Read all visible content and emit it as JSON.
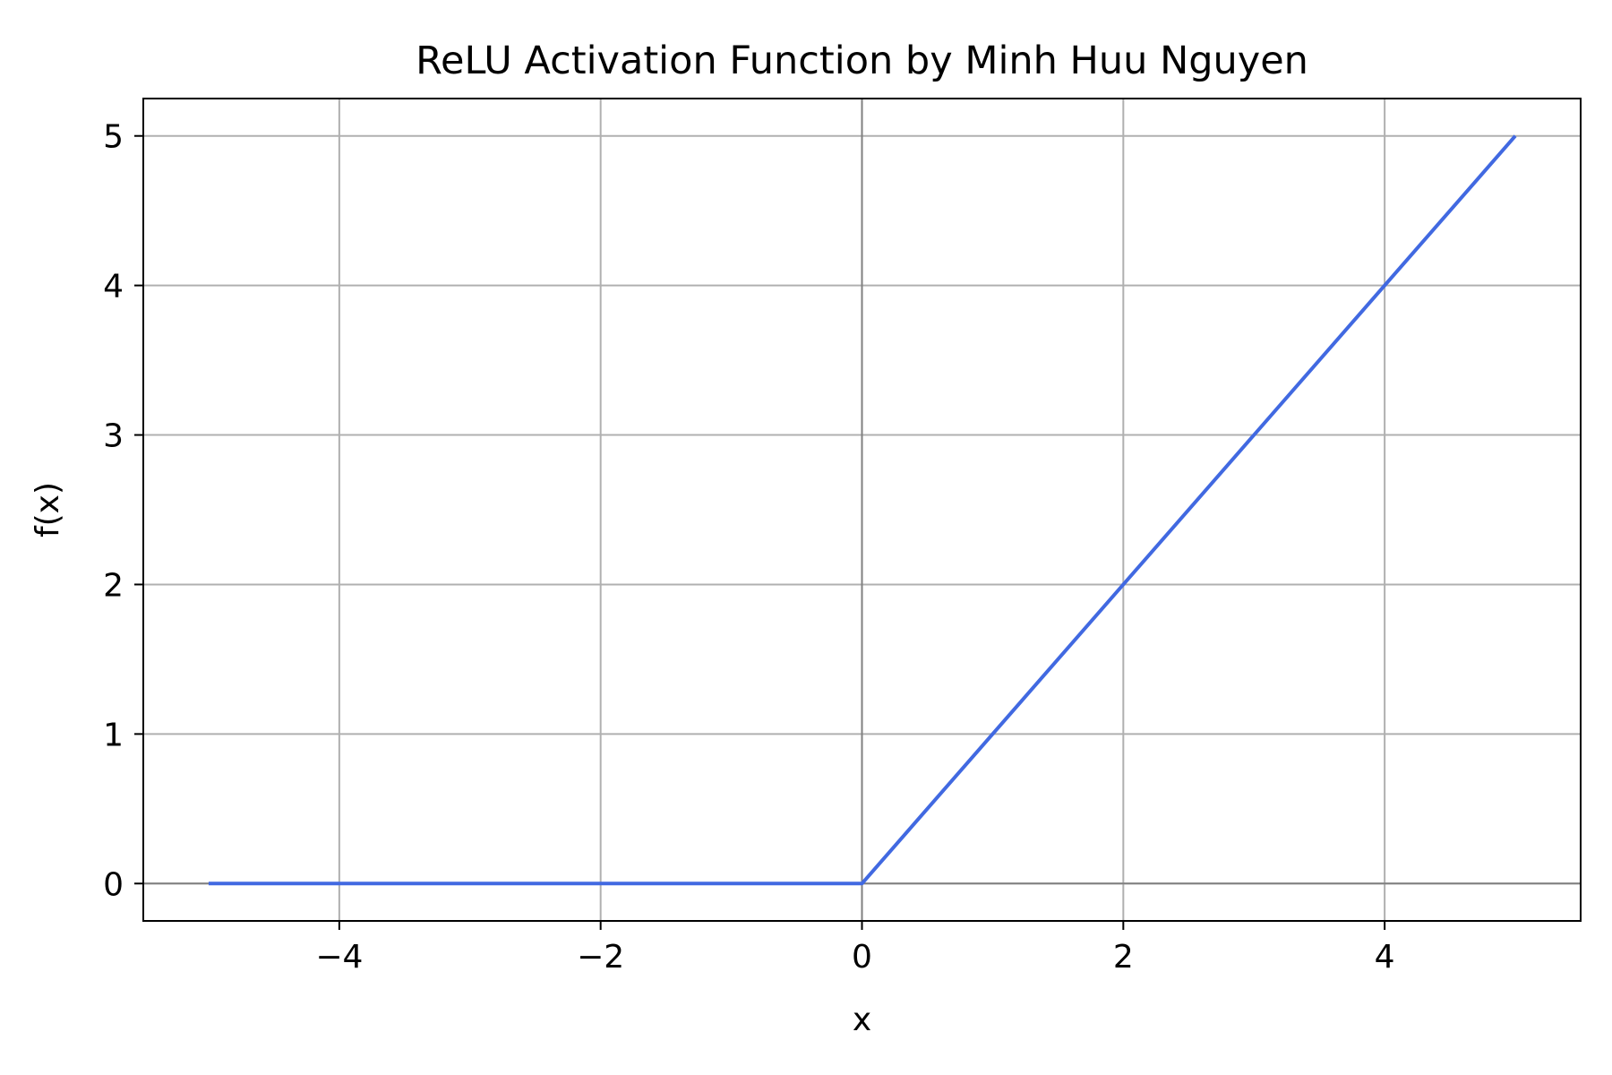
{
  "chart_data": {
    "type": "line",
    "title": "ReLU Activation Function by Minh Huu Nguyen",
    "xlabel": "x",
    "ylabel": "f(x)",
    "xlim": [
      -5.5,
      5.5
    ],
    "ylim": [
      -0.25,
      5.25
    ],
    "xticks": [
      -4,
      -2,
      0,
      2,
      4
    ],
    "xtick_labels": [
      "−4",
      "−2",
      "0",
      "2",
      "4"
    ],
    "yticks": [
      0,
      1,
      2,
      3,
      4,
      5
    ],
    "ytick_labels": [
      "0",
      "1",
      "2",
      "3",
      "4",
      "5"
    ],
    "grid": true,
    "reference_lines": {
      "x": 0,
      "y": 0,
      "color": "#808080"
    },
    "series": [
      {
        "color": "#4169e1",
        "x": [
          -5,
          0,
          5
        ],
        "y": [
          0,
          0,
          5
        ]
      }
    ]
  }
}
